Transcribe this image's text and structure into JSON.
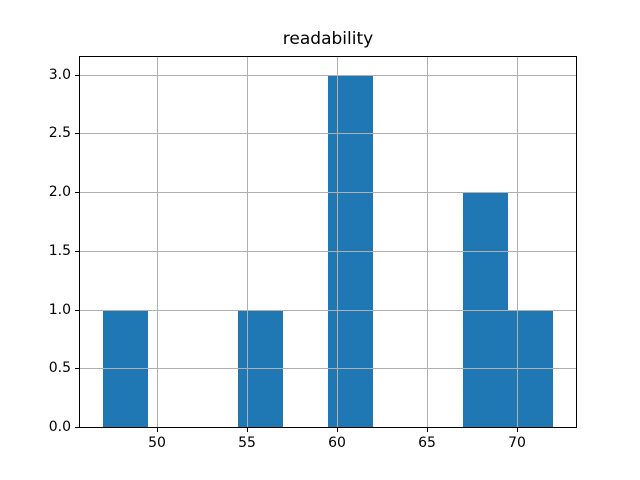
{
  "figure": {
    "background": "#ffffff"
  },
  "chart_data": {
    "type": "bar",
    "subtype": "histogram",
    "title": "readability",
    "xlabel": "",
    "ylabel": "",
    "bin_edges": [
      47.0,
      49.5,
      52.0,
      54.5,
      57.0,
      59.5,
      62.0,
      64.5,
      67.0,
      69.5,
      72.0
    ],
    "counts": [
      1,
      0,
      0,
      1,
      0,
      3,
      0,
      0,
      2,
      1
    ],
    "xlim": [
      45.75,
      73.25
    ],
    "ylim": [
      0,
      3.15
    ],
    "xticks": [
      50,
      55,
      60,
      65,
      70
    ],
    "xtick_labels": [
      "50",
      "55",
      "60",
      "65",
      "70"
    ],
    "yticks": [
      0.0,
      0.5,
      1.0,
      1.5,
      2.0,
      2.5,
      3.0
    ],
    "ytick_labels": [
      "0.0",
      "0.5",
      "1.0",
      "1.5",
      "2.0",
      "2.5",
      "3.0"
    ],
    "grid": true,
    "grid_above_bars": true,
    "legend": null,
    "colors": {
      "bar_fill": "#1f77b4",
      "grid_line": "#b0b0b0",
      "spine": "#000000",
      "tick_label": "#000000",
      "title": "#000000",
      "background": "#ffffff"
    }
  }
}
